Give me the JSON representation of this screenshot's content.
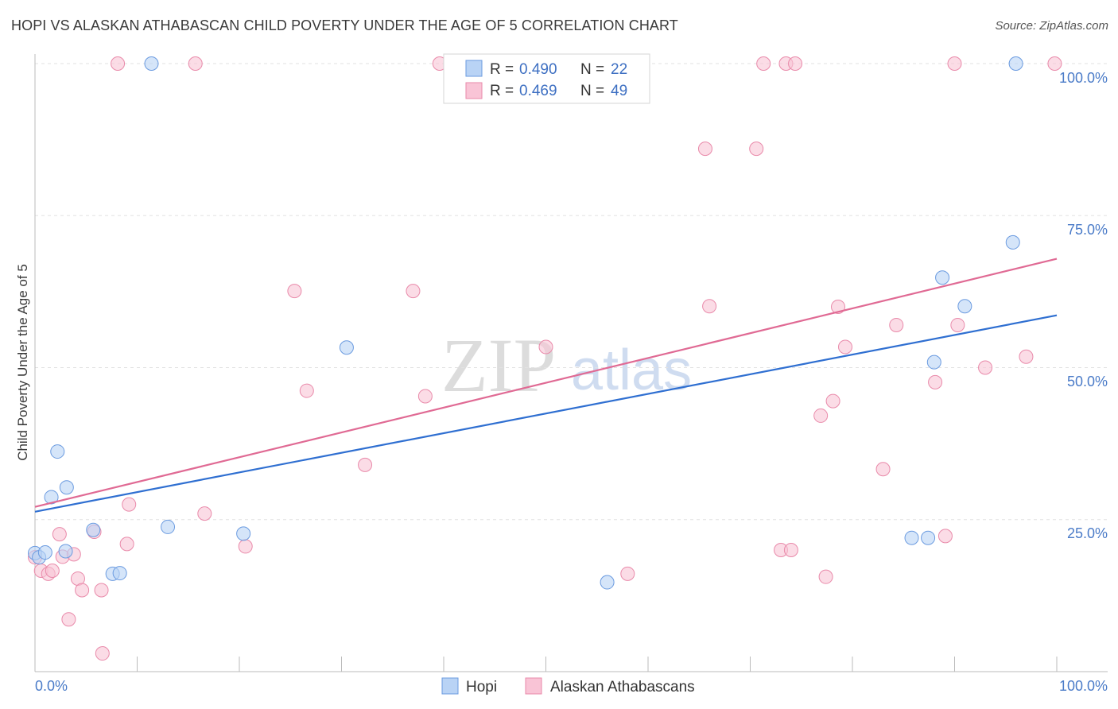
{
  "title": "HOPI VS ALASKAN ATHABASCAN CHILD POVERTY UNDER THE AGE OF 5 CORRELATION CHART",
  "source": "Source: ZipAtlas.com",
  "watermark": {
    "zip": "ZIP",
    "atlas": "atlas"
  },
  "colors": {
    "hopi_fill": "#b9d3f5",
    "hopi_stroke": "#6b9be0",
    "hopi_line": "#2f6fd1",
    "ath_fill": "#f9c4d6",
    "ath_stroke": "#e98aaa",
    "ath_line": "#e06a94",
    "grid": "#e2e2e2",
    "axis_label": "#4a7bc8"
  },
  "chart_data": {
    "type": "scatter",
    "title": "HOPI VS ALASKAN ATHABASCAN CHILD POVERTY UNDER THE AGE OF 5 CORRELATION CHART",
    "xlabel": "",
    "ylabel": "Child Poverty Under the Age of 5",
    "xlim": [
      0,
      100
    ],
    "ylim": [
      0,
      100
    ],
    "x_tick_labels": [
      "0.0%",
      "100.0%"
    ],
    "y_ticks": [
      25,
      50,
      75,
      100
    ],
    "y_tick_labels": [
      "25.0%",
      "50.0%",
      "75.0%",
      "100.0%"
    ],
    "legend_position": "top-center",
    "stats": [
      {
        "name": "Hopi",
        "r_label": "R =",
        "r": "0.490",
        "n_label": "N =",
        "n": "22"
      },
      {
        "name": "Alaskan Athabascans",
        "r_label": "R =",
        "r": "0.469",
        "n_label": "N =",
        "n": "49"
      }
    ],
    "series": [
      {
        "name": "Hopi",
        "trend": {
          "x": [
            0,
            100
          ],
          "y": [
            26.3,
            58.6
          ]
        },
        "points": [
          [
            0.0,
            19.5
          ],
          [
            0.4,
            18.8
          ],
          [
            1.0,
            19.6
          ],
          [
            1.6,
            28.7
          ],
          [
            2.2,
            36.2
          ],
          [
            3.0,
            19.8
          ],
          [
            3.1,
            30.3
          ],
          [
            5.7,
            23.3
          ],
          [
            7.6,
            16.1
          ],
          [
            8.3,
            16.2
          ],
          [
            11.4,
            100.0
          ],
          [
            13.0,
            23.8
          ],
          [
            20.4,
            22.7
          ],
          [
            30.5,
            53.3
          ],
          [
            56.0,
            14.7
          ],
          [
            85.8,
            22.0
          ],
          [
            87.4,
            22.0
          ],
          [
            88.0,
            50.9
          ],
          [
            88.8,
            64.8
          ],
          [
            91.0,
            60.1
          ],
          [
            95.7,
            70.6
          ],
          [
            96.0,
            100.0
          ]
        ]
      },
      {
        "name": "Alaskan Athabascans",
        "trend": {
          "x": [
            0,
            100
          ],
          "y": [
            27.1,
            67.9
          ]
        },
        "points": [
          [
            0.0,
            18.8
          ],
          [
            0.6,
            16.6
          ],
          [
            1.3,
            16.1
          ],
          [
            1.7,
            16.6
          ],
          [
            2.4,
            22.6
          ],
          [
            2.7,
            18.9
          ],
          [
            3.3,
            8.6
          ],
          [
            3.8,
            19.3
          ],
          [
            4.2,
            15.3
          ],
          [
            4.6,
            13.4
          ],
          [
            5.8,
            23.0
          ],
          [
            6.6,
            3.0
          ],
          [
            6.5,
            13.4
          ],
          [
            8.1,
            100.0
          ],
          [
            9.0,
            21.0
          ],
          [
            9.2,
            27.5
          ],
          [
            15.7,
            100.0
          ],
          [
            16.6,
            26.0
          ],
          [
            20.6,
            20.6
          ],
          [
            25.4,
            62.6
          ],
          [
            26.6,
            46.2
          ],
          [
            32.3,
            34.0
          ],
          [
            37.0,
            62.6
          ],
          [
            38.2,
            45.3
          ],
          [
            39.6,
            100.0
          ],
          [
            50.0,
            53.4
          ],
          [
            58.0,
            16.1
          ],
          [
            65.6,
            86.0
          ],
          [
            66.0,
            60.1
          ],
          [
            70.6,
            86.0
          ],
          [
            71.3,
            100.0
          ],
          [
            73.0,
            20.0
          ],
          [
            74.0,
            20.0
          ],
          [
            73.5,
            100.0
          ],
          [
            74.4,
            100.0
          ],
          [
            76.9,
            42.1
          ],
          [
            77.4,
            15.6
          ],
          [
            78.1,
            44.5
          ],
          [
            78.6,
            60.0
          ],
          [
            79.3,
            53.4
          ],
          [
            83.0,
            33.3
          ],
          [
            84.3,
            57.0
          ],
          [
            88.1,
            47.6
          ],
          [
            89.1,
            22.3
          ],
          [
            90.3,
            57.0
          ],
          [
            93.0,
            50.0
          ],
          [
            90.0,
            100.0
          ],
          [
            97.0,
            51.8
          ],
          [
            99.8,
            100.0
          ]
        ]
      }
    ]
  }
}
